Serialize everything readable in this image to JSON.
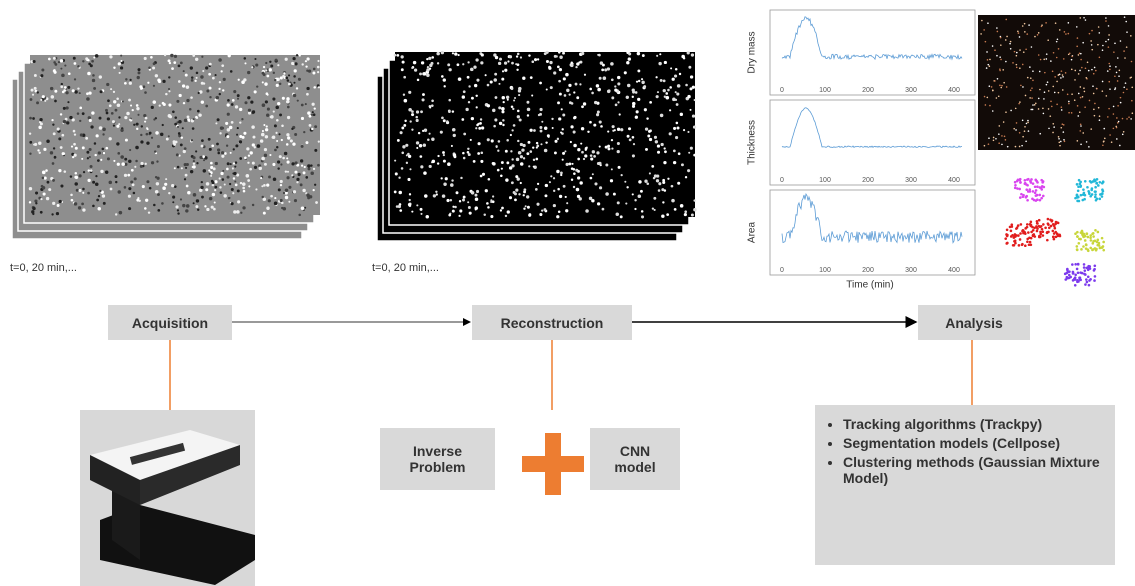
{
  "images": {
    "raw_caption": "t=0, 20 min,...",
    "reconstructed_caption": "t=0, 20 min,..."
  },
  "plots": {
    "y_labels": [
      "Dry mass",
      "Thickness",
      "Area"
    ],
    "x_label": "Time (min)",
    "x_ticks": [
      "0",
      "100",
      "200",
      "300",
      "400"
    ]
  },
  "pipeline": {
    "steps": [
      "Acquisition",
      "Reconstruction",
      "Analysis"
    ]
  },
  "reconstruction": {
    "methods": [
      "Inverse Problem",
      "CNN model"
    ]
  },
  "analysis": {
    "methods": [
      "Tracking algorithms (Trackpy)",
      "Segmentation models (Cellpose)",
      "Clustering methods (Gaussian Mixture Model)"
    ]
  }
}
